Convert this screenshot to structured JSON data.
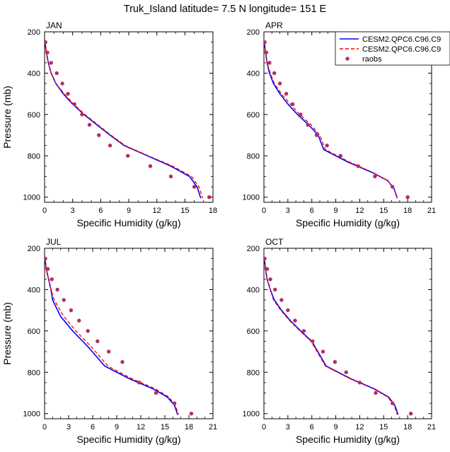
{
  "title": "Truk_Island  latitude= 7.5 N longitude= 151 E",
  "colors": {
    "model1": "#0000ff",
    "model2": "#ff0000",
    "raobs": "#b03060"
  },
  "legend": {
    "entries": [
      {
        "label": "CESM2.QPC6.C96.C9",
        "style": "solid-line",
        "color": "#0000ff"
      },
      {
        "label": "CESM2.QPC6.C96.C9",
        "style": "dashed-line",
        "color": "#ff0000"
      },
      {
        "label": "raobs",
        "style": "dot",
        "color": "#b03060"
      }
    ]
  },
  "chart_data": [
    {
      "type": "line",
      "panel": "JAN",
      "xlabel": "Specific Humidity (g/kg)",
      "ylabel": "Pressure (mb)",
      "xlim": [
        0,
        18
      ],
      "ylim": [
        200,
        1025
      ],
      "xticks": [
        0,
        3,
        6,
        9,
        12,
        15,
        18
      ],
      "yticks": [
        200,
        400,
        600,
        800,
        1000
      ],
      "series": [
        {
          "name": "CESM2.QPC6.C96.C9 (solid)",
          "x": [
            0.05,
            0.2,
            0.4,
            0.7,
            1.2,
            2.0,
            3.0,
            4.2,
            5.6,
            7.0,
            8.5,
            11.0,
            13.5,
            15.5,
            16.3,
            16.7
          ],
          "y": [
            250,
            300,
            350,
            400,
            450,
            500,
            550,
            600,
            650,
            700,
            750,
            800,
            850,
            900,
            950,
            1005
          ]
        },
        {
          "name": "CESM2.QPC6.C96.C9 (dashed)",
          "x": [
            0.05,
            0.2,
            0.4,
            0.7,
            1.2,
            2.1,
            3.1,
            4.3,
            5.7,
            7.1,
            8.6,
            11.1,
            13.7,
            15.7,
            16.5,
            16.9
          ],
          "y": [
            250,
            300,
            350,
            400,
            450,
            500,
            550,
            600,
            650,
            700,
            750,
            800,
            850,
            900,
            950,
            1005
          ]
        },
        {
          "name": "raobs",
          "x": [
            0.1,
            0.3,
            0.7,
            1.3,
            1.9,
            2.5,
            3.2,
            4.0,
            4.8,
            5.8,
            7.0,
            8.9,
            11.3,
            13.5,
            16.0,
            17.6
          ],
          "y": [
            250,
            300,
            350,
            400,
            450,
            500,
            550,
            600,
            650,
            700,
            750,
            800,
            850,
            900,
            950,
            1000
          ]
        }
      ]
    },
    {
      "type": "line",
      "panel": "APR",
      "xlabel": "Specific Humidity (g/kg)",
      "ylabel": "Pressure (mb)",
      "xlim": [
        0,
        21
      ],
      "ylim": [
        200,
        1025
      ],
      "xticks": [
        0,
        3,
        6,
        9,
        12,
        15,
        18,
        21
      ],
      "yticks": [
        200,
        400,
        600,
        800,
        1000
      ],
      "series": [
        {
          "name": "CESM2.QPC6.C96.C9 (solid)",
          "x": [
            0.05,
            0.2,
            0.4,
            0.7,
            1.2,
            2.0,
            3.0,
            4.2,
            5.6,
            6.8,
            7.5,
            10.5,
            13.5,
            15.5,
            16.3,
            16.7
          ],
          "y": [
            250,
            300,
            350,
            400,
            450,
            500,
            550,
            600,
            650,
            700,
            770,
            830,
            880,
            920,
            960,
            1005
          ]
        },
        {
          "name": "CESM2.QPC6.C96.C9 (dashed)",
          "x": [
            0.05,
            0.2,
            0.4,
            0.8,
            1.3,
            2.2,
            3.3,
            4.5,
            5.9,
            7.0,
            7.7,
            10.7,
            13.6,
            15.5,
            16.3,
            16.7
          ],
          "y": [
            250,
            300,
            350,
            400,
            450,
            500,
            550,
            600,
            650,
            700,
            770,
            830,
            880,
            920,
            960,
            1005
          ]
        },
        {
          "name": "raobs",
          "x": [
            0.1,
            0.3,
            0.7,
            1.3,
            2.0,
            2.8,
            3.6,
            4.6,
            5.5,
            6.6,
            7.9,
            9.6,
            11.8,
            13.9,
            16.1,
            18.0
          ],
          "y": [
            250,
            300,
            350,
            400,
            450,
            500,
            550,
            600,
            650,
            700,
            750,
            800,
            850,
            900,
            950,
            1000
          ]
        }
      ]
    },
    {
      "type": "line",
      "panel": "JUL",
      "xlabel": "Specific Humidity (g/kg)",
      "ylabel": "Pressure (mb)",
      "xlim": [
        0,
        21
      ],
      "ylim": [
        200,
        1025
      ],
      "xticks": [
        0,
        3,
        6,
        9,
        12,
        15,
        18,
        21
      ],
      "yticks": [
        200,
        400,
        600,
        800,
        1000
      ],
      "series": [
        {
          "name": "CESM2.QPC6.C96.C9 (solid)",
          "x": [
            0.05,
            0.2,
            0.5,
            0.8,
            1.0,
            2.0,
            3.5,
            5.5,
            7.5,
            10.5,
            13.5,
            15.3,
            16.2,
            16.6
          ],
          "y": [
            250,
            300,
            350,
            400,
            450,
            530,
            600,
            680,
            770,
            830,
            880,
            920,
            960,
            1005
          ]
        },
        {
          "name": "CESM2.QPC6.C96.C9 (dashed)",
          "x": [
            0.05,
            0.2,
            0.5,
            0.8,
            1.2,
            2.4,
            3.9,
            5.9,
            7.9,
            10.8,
            13.8,
            15.5,
            16.3,
            16.7
          ],
          "y": [
            250,
            300,
            350,
            400,
            450,
            530,
            600,
            680,
            770,
            830,
            880,
            920,
            960,
            1005
          ]
        },
        {
          "name": "raobs",
          "x": [
            0.1,
            0.4,
            0.9,
            1.6,
            2.4,
            3.3,
            4.3,
            5.4,
            6.6,
            8.0,
            9.7,
            11.8,
            13.9,
            16.2,
            18.3
          ],
          "y": [
            250,
            300,
            350,
            400,
            450,
            500,
            550,
            600,
            650,
            700,
            750,
            850,
            900,
            950,
            1000
          ]
        }
      ]
    },
    {
      "type": "line",
      "panel": "OCT",
      "xlabel": "Specific Humidity (g/kg)",
      "ylabel": "Pressure (mb)",
      "xlim": [
        0,
        21
      ],
      "ylim": [
        200,
        1025
      ],
      "xticks": [
        0,
        3,
        6,
        9,
        12,
        15,
        18,
        21
      ],
      "yticks": [
        200,
        400,
        600,
        800,
        1000
      ],
      "series": [
        {
          "name": "CESM2.QPC6.C96.C9 (solid)",
          "x": [
            0.05,
            0.2,
            0.4,
            0.8,
            1.3,
            2.2,
            3.3,
            4.6,
            6.0,
            7.8,
            10.8,
            13.8,
            15.6,
            16.4,
            16.8
          ],
          "y": [
            250,
            300,
            350,
            400,
            450,
            500,
            550,
            600,
            650,
            770,
            830,
            880,
            920,
            960,
            1005
          ]
        },
        {
          "name": "CESM2.QPC6.C96.C9 (dashed)",
          "x": [
            0.05,
            0.2,
            0.4,
            0.8,
            1.2,
            2.1,
            3.2,
            4.5,
            5.9,
            7.7,
            10.7,
            13.7,
            15.5,
            16.3,
            16.7
          ],
          "y": [
            250,
            300,
            350,
            400,
            450,
            500,
            550,
            600,
            650,
            770,
            830,
            880,
            920,
            960,
            1005
          ]
        },
        {
          "name": "raobs",
          "x": [
            0.1,
            0.4,
            0.8,
            1.4,
            2.2,
            3.0,
            3.9,
            5.0,
            6.1,
            7.4,
            8.9,
            10.3,
            12.0,
            14.0,
            16.1,
            18.4
          ],
          "y": [
            250,
            300,
            350,
            400,
            450,
            500,
            550,
            600,
            650,
            700,
            750,
            800,
            850,
            900,
            950,
            1000
          ]
        }
      ]
    }
  ]
}
